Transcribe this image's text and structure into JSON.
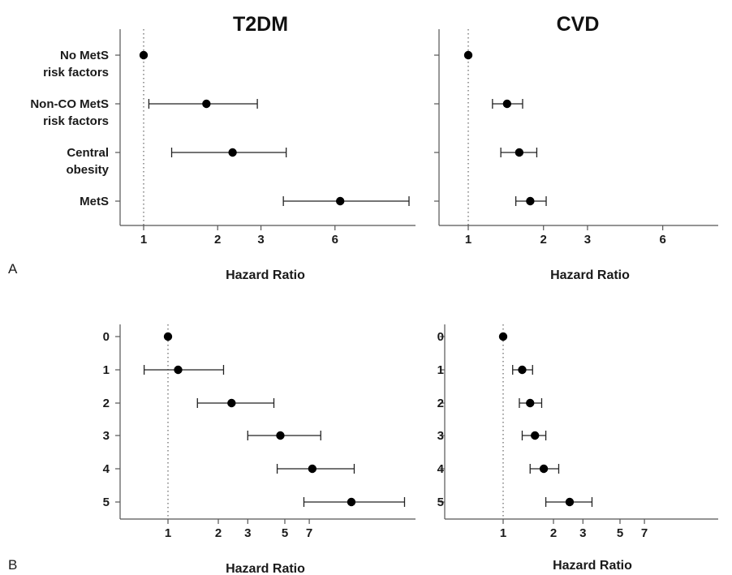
{
  "chart_data": [
    {
      "type": "scatter",
      "panel": "A",
      "title": "T2DM",
      "xlabel": "Hazard Ratio",
      "xscale": "log",
      "xticks": [
        "1",
        "2",
        "3",
        "6"
      ],
      "reference_line": 1,
      "categories": [
        "No MetS risk factors",
        "Non-CO MetS risk factors",
        "Central obesity",
        "MetS"
      ],
      "row_labels": [
        [
          "No MetS",
          "risk factors"
        ],
        [
          "Non-CO MetS",
          "risk factors"
        ],
        [
          "Central",
          "obesity"
        ],
        [
          "MetS"
        ]
      ],
      "hr": [
        1,
        1.8,
        2.3,
        6.3
      ],
      "ci_low": [
        null,
        1.05,
        1.3,
        3.7
      ],
      "ci_high": [
        null,
        2.9,
        3.8,
        12.5
      ]
    },
    {
      "type": "scatter",
      "panel": "A",
      "title": "CVD",
      "xlabel": "Hazard Ratio",
      "xscale": "log",
      "xticks": [
        "1",
        "2",
        "3",
        "6"
      ],
      "reference_line": 1,
      "categories": [
        "No MetS risk factors",
        "Non-CO MetS risk factors",
        "Central obesity",
        "MetS"
      ],
      "hr": [
        1,
        1.43,
        1.6,
        1.77
      ],
      "ci_low": [
        null,
        1.25,
        1.35,
        1.55
      ],
      "ci_high": [
        null,
        1.65,
        1.88,
        2.05
      ]
    },
    {
      "type": "scatter",
      "panel": "B",
      "title": "",
      "xlabel": "Hazard Ratio",
      "xscale": "log",
      "xticks": [
        "1",
        "2",
        "3",
        "5",
        "7"
      ],
      "reference_line": 1,
      "categories": [
        "0",
        "1",
        "2",
        "3",
        "4",
        "5"
      ],
      "hr": [
        1,
        1.15,
        2.4,
        4.7,
        7.3,
        12.5
      ],
      "ci_low": [
        null,
        0.72,
        1.5,
        3.0,
        4.5,
        6.5
      ],
      "ci_high": [
        null,
        2.15,
        4.3,
        8.2,
        13.0,
        26.0
      ]
    },
    {
      "type": "scatter",
      "panel": "B",
      "title": "",
      "xlabel": "Hazard Ratio",
      "xscale": "log",
      "xticks": [
        "1",
        "2",
        "3",
        "5",
        "7"
      ],
      "reference_line": 1,
      "categories": [
        "0",
        "1",
        "2",
        "3",
        "4",
        "5"
      ],
      "hr": [
        1,
        1.3,
        1.45,
        1.55,
        1.75,
        2.5
      ],
      "ci_low": [
        null,
        1.14,
        1.25,
        1.3,
        1.45,
        1.8
      ],
      "ci_high": [
        null,
        1.5,
        1.7,
        1.8,
        2.15,
        3.4
      ]
    }
  ],
  "panel_labels": [
    "A",
    "B"
  ]
}
